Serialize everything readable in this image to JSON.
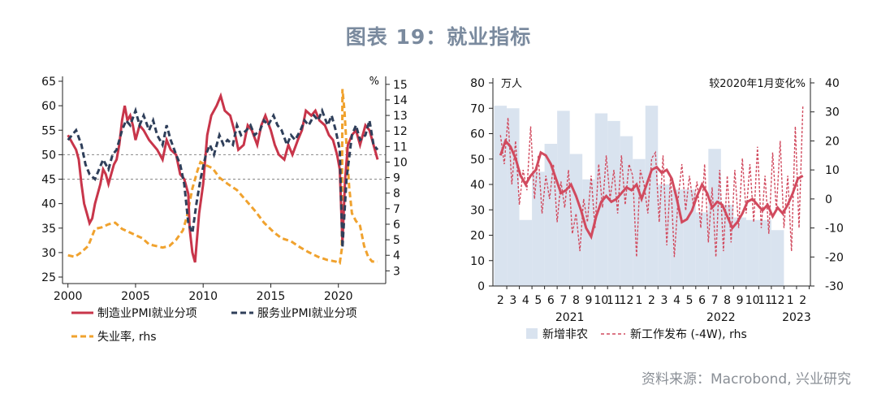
{
  "title": "图表 19：就业指标",
  "source": "资料来源：Macrobond, 兴业研究",
  "colors": {
    "pmi_manufacturing": "#c8354a",
    "pmi_services": "#2f3f5a",
    "unemployment": "#f0a22e",
    "nfp_bar": "#d9e3ef",
    "claims": "#d14a5e",
    "ref_line": "#888888"
  },
  "chart_data": [
    {
      "type": "line",
      "x_ticks": [
        "2000",
        "2005",
        "2010",
        "2015",
        "2020"
      ],
      "y_left": {
        "ticks": [
          "65",
          "60",
          "55",
          "50",
          "45",
          "40",
          "35",
          "30",
          "25"
        ],
        "ylim": [
          25,
          65
        ]
      },
      "y_right": {
        "unit": "%",
        "ticks": [
          "15",
          "14",
          "13",
          "12",
          "11",
          "10",
          "9",
          "8",
          "7",
          "6",
          "5",
          "4",
          "3"
        ],
        "ylim": [
          2.6,
          15.2
        ]
      },
      "reference_lines": [
        50,
        45
      ],
      "legend": {
        "pmi_manufacturing": "制造业PMI就业分项",
        "pmi_services": "服务业PMI就业分项",
        "unemployment": "失业率, rhs"
      },
      "series": [
        {
          "name": "制造业PMI就业分项",
          "axis": "left",
          "x": [
            2000.0,
            2000.2,
            2000.4,
            2000.6,
            2000.8,
            2001.0,
            2001.2,
            2001.4,
            2001.6,
            2001.8,
            2002.0,
            2002.2,
            2002.4,
            2002.6,
            2002.8,
            2003.0,
            2003.2,
            2003.4,
            2003.6,
            2003.8,
            2004.0,
            2004.2,
            2004.4,
            2004.6,
            2004.8,
            2005.0,
            2005.3,
            2005.6,
            2006.0,
            2006.3,
            2006.6,
            2007.0,
            2007.3,
            2007.6,
            2008.0,
            2008.3,
            2008.6,
            2008.9,
            2009.0,
            2009.2,
            2009.4,
            2009.7,
            2010.0,
            2010.3,
            2010.6,
            2011.0,
            2011.3,
            2011.6,
            2012.0,
            2012.3,
            2012.6,
            2013.0,
            2013.3,
            2013.6,
            2014.0,
            2014.3,
            2014.6,
            2015.0,
            2015.3,
            2015.6,
            2016.0,
            2016.3,
            2016.6,
            2017.0,
            2017.3,
            2017.6,
            2018.0,
            2018.3,
            2018.6,
            2019.0,
            2019.3,
            2019.6,
            2019.9,
            2020.1,
            2020.3,
            2020.5,
            2020.7,
            2021.0,
            2021.3,
            2021.6,
            2022.0,
            2022.3,
            2022.6,
            2022.9
          ],
          "y": [
            54,
            53,
            52,
            51,
            49,
            44,
            40,
            38,
            36,
            37,
            40,
            42,
            44,
            47,
            46,
            44,
            46,
            48,
            49,
            52,
            57,
            60,
            57,
            58,
            56,
            53,
            56,
            55,
            53,
            52,
            51,
            49,
            53,
            51,
            50,
            46,
            45,
            42,
            35,
            30,
            28,
            38,
            44,
            54,
            58,
            60,
            62,
            59,
            58,
            55,
            51,
            52,
            56,
            55,
            52,
            56,
            58,
            55,
            52,
            50,
            49,
            52,
            50,
            53,
            55,
            59,
            58,
            59,
            57,
            56,
            54,
            53,
            50,
            47,
            32,
            45,
            52,
            54,
            55,
            52,
            56,
            55,
            52,
            49
          ]
        },
        {
          "name": "服务业PMI就业分项",
          "axis": "left",
          "x": [
            2000.0,
            2000.3,
            2000.6,
            2001.0,
            2001.3,
            2001.6,
            2002.0,
            2002.3,
            2002.6,
            2003.0,
            2003.3,
            2003.6,
            2004.0,
            2004.3,
            2004.6,
            2005.0,
            2005.3,
            2005.6,
            2006.0,
            2006.3,
            2006.6,
            2007.0,
            2007.3,
            2007.6,
            2008.0,
            2008.3,
            2008.6,
            2008.9,
            2009.2,
            2009.5,
            2009.8,
            2010.2,
            2010.5,
            2010.8,
            2011.2,
            2011.5,
            2011.8,
            2012.2,
            2012.5,
            2012.8,
            2013.2,
            2013.5,
            2013.8,
            2014.2,
            2014.5,
            2014.8,
            2015.2,
            2015.5,
            2015.8,
            2016.2,
            2016.5,
            2016.8,
            2017.2,
            2017.5,
            2017.8,
            2018.2,
            2018.5,
            2018.8,
            2019.2,
            2019.5,
            2019.8,
            2020.1,
            2020.3,
            2020.6,
            2021.0,
            2021.3,
            2021.6,
            2022.0,
            2022.3,
            2022.6,
            2022.9
          ],
          "y": [
            53,
            54,
            55,
            52,
            48,
            46,
            45,
            47,
            49,
            47,
            50,
            51,
            55,
            57,
            56,
            59,
            56,
            58,
            55,
            57,
            54,
            52,
            56,
            53,
            50,
            48,
            44,
            36,
            34,
            40,
            45,
            50,
            52,
            50,
            54,
            52,
            53,
            52,
            56,
            54,
            55,
            56,
            54,
            55,
            57,
            56,
            58,
            56,
            55,
            52,
            54,
            53,
            55,
            57,
            56,
            58,
            57,
            59,
            56,
            58,
            55,
            51,
            31,
            45,
            54,
            56,
            53,
            54,
            57,
            52,
            51
          ]
        },
        {
          "name": "失业率, rhs",
          "axis": "right",
          "x": [
            2000.0,
            2000.5,
            2001.0,
            2001.5,
            2002.0,
            2002.5,
            2003.0,
            2003.5,
            2004.0,
            2004.5,
            2005.0,
            2005.5,
            2006.0,
            2006.5,
            2007.0,
            2007.5,
            2008.0,
            2008.5,
            2008.8,
            2009.2,
            2009.6,
            2009.8,
            2010.2,
            2010.7,
            2011.2,
            2011.8,
            2012.5,
            2013.2,
            2013.9,
            2014.5,
            2015.2,
            2015.8,
            2016.5,
            2017.2,
            2017.8,
            2018.5,
            2019.2,
            2019.8,
            2020.1,
            2020.25,
            2020.3,
            2020.45,
            2020.6,
            2020.8,
            2021.0,
            2021.3,
            2021.6,
            2021.9,
            2022.2,
            2022.5,
            2022.9
          ],
          "y": [
            4.0,
            3.9,
            4.2,
            4.6,
            5.7,
            5.8,
            6.0,
            6.1,
            5.7,
            5.5,
            5.3,
            5.1,
            4.7,
            4.6,
            4.5,
            4.6,
            5.0,
            5.6,
            6.5,
            8.3,
            9.5,
            10.0,
            9.8,
            9.6,
            9.0,
            8.6,
            8.2,
            7.5,
            6.8,
            6.1,
            5.5,
            5.1,
            4.9,
            4.5,
            4.2,
            3.9,
            3.7,
            3.6,
            3.5,
            4.4,
            14.7,
            13.3,
            11.1,
            8.4,
            6.7,
            6.2,
            5.9,
            4.6,
            3.9,
            3.6,
            3.6
          ]
        }
      ]
    },
    {
      "type": "bar+line",
      "left_unit": "万人",
      "right_unit": "较2020年1月变化%",
      "y_left": {
        "ticks": [
          "80",
          "70",
          "60",
          "50",
          "40",
          "30",
          "20",
          "10",
          "0"
        ],
        "ylim": [
          0,
          80
        ]
      },
      "y_right": {
        "ticks": [
          "40",
          "30",
          "20",
          "10",
          "0",
          "-10",
          "-20",
          "-30"
        ],
        "ylim": [
          -30,
          40
        ]
      },
      "month_labels": [
        "2",
        "3",
        "4",
        "5",
        "6",
        "7",
        "8",
        "9",
        "10",
        "11",
        "12",
        "1",
        "2",
        "3",
        "4",
        "5",
        "6",
        "7",
        "8",
        "9",
        "10",
        "11",
        "12",
        "1",
        "2"
      ],
      "year_labels": [
        "2021",
        "2022",
        "2023"
      ],
      "legend": {
        "bars": "新增非农",
        "line": "新工作发布 (-4W), rhs"
      },
      "bars": {
        "name": "新增非农",
        "values": [
          71,
          70,
          26,
          45,
          56,
          69,
          52,
          42,
          68,
          65,
          59,
          50,
          71,
          40,
          38,
          38,
          29,
          54,
          32,
          27,
          26,
          26,
          22,
          null,
          null
        ]
      },
      "claims_smooth": {
        "x": [
          0.0,
          0.4,
          0.8,
          1.2,
          1.6,
          2.0,
          2.4,
          2.8,
          3.2,
          3.6,
          4.0,
          4.4,
          4.8,
          5.2,
          5.6,
          6.0,
          6.4,
          6.8,
          7.2,
          7.6,
          8.0,
          8.4,
          8.8,
          9.2,
          9.6,
          10.0,
          10.4,
          10.8,
          11.2,
          11.6,
          12.0,
          12.4,
          12.8,
          13.2,
          13.6,
          14.0,
          14.4,
          14.8,
          15.2,
          15.6,
          16.0,
          16.4,
          16.8,
          17.2,
          17.6,
          18.0,
          18.4,
          18.8,
          19.2,
          19.6,
          20.0,
          20.4,
          20.8,
          21.2,
          21.6,
          22.0,
          22.4,
          22.8,
          23.2,
          23.6,
          24.0
        ],
        "y": [
          15,
          20,
          18,
          14,
          8,
          5,
          8,
          10,
          16,
          15,
          12,
          7,
          2,
          3,
          5,
          1,
          -4,
          -10,
          -13,
          -6,
          -1,
          1,
          -1,
          0,
          2,
          4,
          3,
          5,
          0,
          5,
          10,
          11,
          9,
          10,
          7,
          0,
          -8,
          -7,
          -4,
          1,
          5,
          2,
          -3,
          -1,
          -2,
          -6,
          -10,
          -8,
          -5,
          -1,
          0,
          -2,
          -4,
          -2,
          -6,
          -3,
          -5,
          -2,
          2,
          7,
          8
        ]
      },
      "claims_raw": {
        "x": [
          0.0,
          0.3,
          0.6,
          0.9,
          1.2,
          1.5,
          1.8,
          2.1,
          2.4,
          2.7,
          3.0,
          3.3,
          3.6,
          3.9,
          4.2,
          4.5,
          4.8,
          5.1,
          5.4,
          5.7,
          6.0,
          6.3,
          6.6,
          6.9,
          7.2,
          7.5,
          7.8,
          8.1,
          8.4,
          8.7,
          9.0,
          9.3,
          9.6,
          9.9,
          10.2,
          10.5,
          10.8,
          11.1,
          11.4,
          11.7,
          12.0,
          12.3,
          12.6,
          12.9,
          13.2,
          13.5,
          13.8,
          14.1,
          14.4,
          14.7,
          15.0,
          15.3,
          15.6,
          15.9,
          16.2,
          16.5,
          16.8,
          17.1,
          17.4,
          17.7,
          18.0,
          18.3,
          18.6,
          18.9,
          19.2,
          19.5,
          19.8,
          20.1,
          20.4,
          20.7,
          21.0,
          21.3,
          21.6,
          21.9,
          22.2,
          22.5,
          22.8,
          23.1,
          23.4,
          23.7,
          24.0
        ],
        "y": [
          22,
          12,
          28,
          5,
          20,
          -2,
          10,
          3,
          25,
          0,
          15,
          -5,
          8,
          0,
          12,
          -8,
          6,
          -3,
          10,
          -12,
          -5,
          -18,
          0,
          -8,
          8,
          -10,
          12,
          -3,
          15,
          0,
          10,
          -5,
          15,
          -2,
          12,
          8,
          -20,
          10,
          5,
          -5,
          14,
          16,
          -8,
          15,
          -16,
          8,
          -20,
          0,
          12,
          -4,
          8,
          -2,
          6,
          -10,
          12,
          -15,
          4,
          -20,
          10,
          -18,
          8,
          -15,
          10,
          -10,
          14,
          -5,
          12,
          -8,
          18,
          -10,
          8,
          -12,
          16,
          -4,
          20,
          -10,
          8,
          -18,
          25,
          -10,
          32
        ]
      }
    }
  ]
}
